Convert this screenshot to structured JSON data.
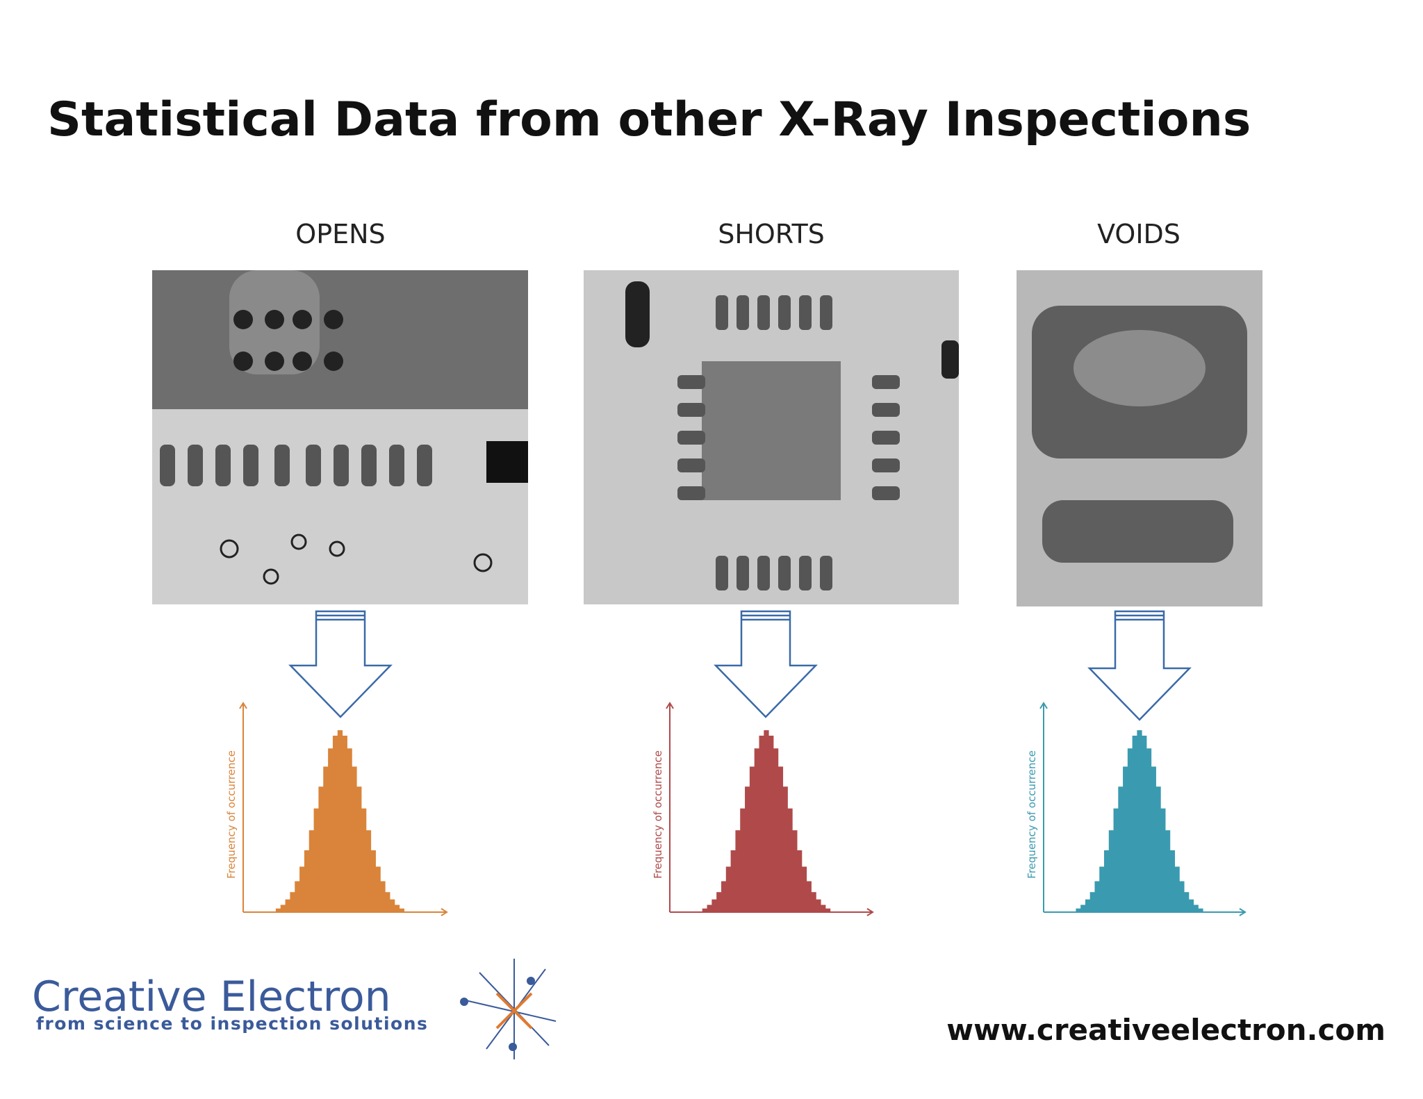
{
  "header": {
    "title": "Statistical Data from other X-Ray Inspections"
  },
  "panels": [
    {
      "label": "OPENS"
    },
    {
      "label": "SHORTS"
    },
    {
      "label": "VOIDS"
    }
  ],
  "chart_data": [
    {
      "type": "bar",
      "y_label": "Frequency of occurrence",
      "color": "#d9843a",
      "ylim": [
        0,
        100
      ],
      "values": [
        2,
        4,
        7,
        11,
        17,
        25,
        34,
        45,
        57,
        69,
        80,
        90,
        97,
        100,
        97,
        90,
        80,
        69,
        57,
        45,
        34,
        25,
        17,
        11,
        7,
        4,
        2
      ]
    },
    {
      "type": "bar",
      "y_label": "Frequency of occurrence",
      "color": "#b04a4a",
      "ylim": [
        0,
        100
      ],
      "values": [
        2,
        4,
        7,
        11,
        17,
        25,
        34,
        45,
        57,
        69,
        80,
        90,
        97,
        100,
        97,
        90,
        80,
        69,
        57,
        45,
        34,
        25,
        17,
        11,
        7,
        4,
        2
      ]
    },
    {
      "type": "bar",
      "y_label": "Frequency of occurrence",
      "color": "#3a9ab0",
      "ylim": [
        0,
        100
      ],
      "values": [
        2,
        4,
        7,
        11,
        17,
        25,
        34,
        45,
        57,
        69,
        80,
        90,
        97,
        100,
        97,
        90,
        80,
        69,
        57,
        45,
        34,
        25,
        17,
        11,
        7,
        4,
        2
      ]
    }
  ],
  "footer": {
    "logo": "Creative Electron",
    "tagline": "from science to inspection solutions",
    "url": "www.creativeelectron.com"
  }
}
